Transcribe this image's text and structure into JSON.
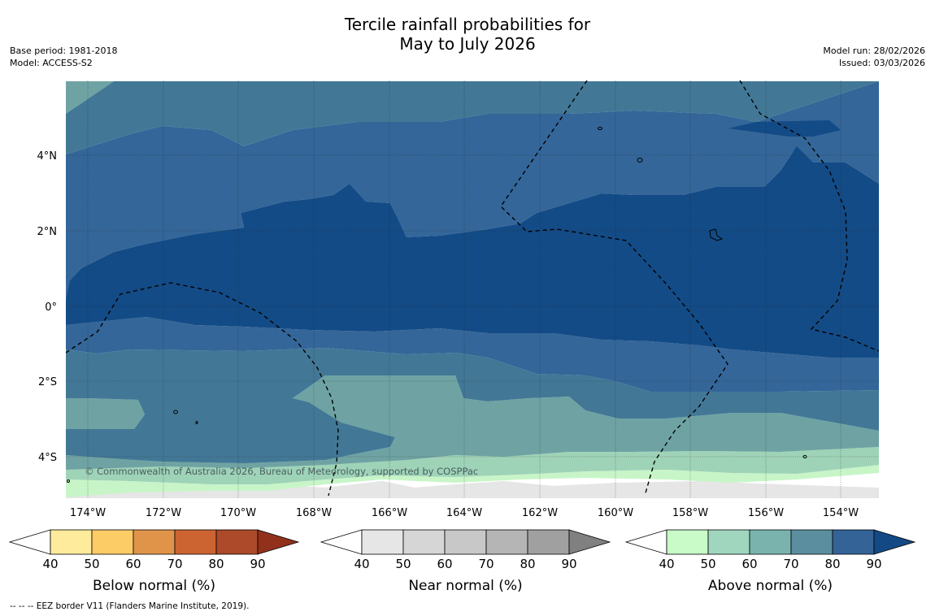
{
  "title": {
    "line1": "Tercile rainfall probabilities for",
    "line2": "May to July 2026"
  },
  "meta_left": {
    "base_period": "Base period: 1981-2018",
    "model": "Model: ACCESS-S2"
  },
  "meta_right": {
    "model_run": "Model run: 28/02/2026",
    "issued": "Issued: 03/03/2026"
  },
  "map": {
    "copyright": "© Commonwealth of Australia 2026, Bureau of Meteorology, supported by COSPPac",
    "lon_labels": [
      "174°W",
      "172°W",
      "170°W",
      "168°W",
      "166°W",
      "164°W",
      "162°W",
      "160°W",
      "158°W",
      "156°W",
      "154°W"
    ],
    "lat_labels": [
      "4°N",
      "2°N",
      "0°",
      "2°S",
      "4°S"
    ],
    "lon_range": [
      -174.6,
      -153.0
    ],
    "lat_range": [
      -5.0,
      6.0
    ],
    "fill_colors": {
      "above_40_50": "#c8f5c8",
      "above_50_60": "#9fd3b8",
      "above_60_70": "#6fa3a3",
      "above_70_80": "#427896",
      "above_80_90": "#346699",
      "above_90": "#134b86",
      "near_50_60": "#d4d4d4",
      "near_40_50": "#e6e6e6"
    }
  },
  "legends": [
    {
      "name": "below",
      "label": "Below normal (%)",
      "ticks": [
        "40",
        "50",
        "60",
        "70",
        "80",
        "90"
      ],
      "colors": [
        "#ffffff",
        "#feeb9c",
        "#fccc66",
        "#e0944a",
        "#cc6432",
        "#ad4a2a",
        "#91311c"
      ]
    },
    {
      "name": "near",
      "label": "Near normal (%)",
      "ticks": [
        "40",
        "50",
        "60",
        "70",
        "80",
        "90"
      ],
      "colors": [
        "#ffffff",
        "#e6e6e6",
        "#d6d6d6",
        "#c8c8c8",
        "#b5b5b5",
        "#a0a0a0",
        "#808080"
      ]
    },
    {
      "name": "above",
      "label": "Above normal (%)",
      "ticks": [
        "40",
        "50",
        "60",
        "70",
        "80",
        "90"
      ],
      "colors": [
        "#ffffff",
        "#c8fbc8",
        "#a0d6be",
        "#7ab3ae",
        "#5b8f9f",
        "#336397",
        "#134a85"
      ]
    }
  ],
  "footer": "--  --  -- EEZ border V11 (Flanders Marine Institute, 2019)."
}
